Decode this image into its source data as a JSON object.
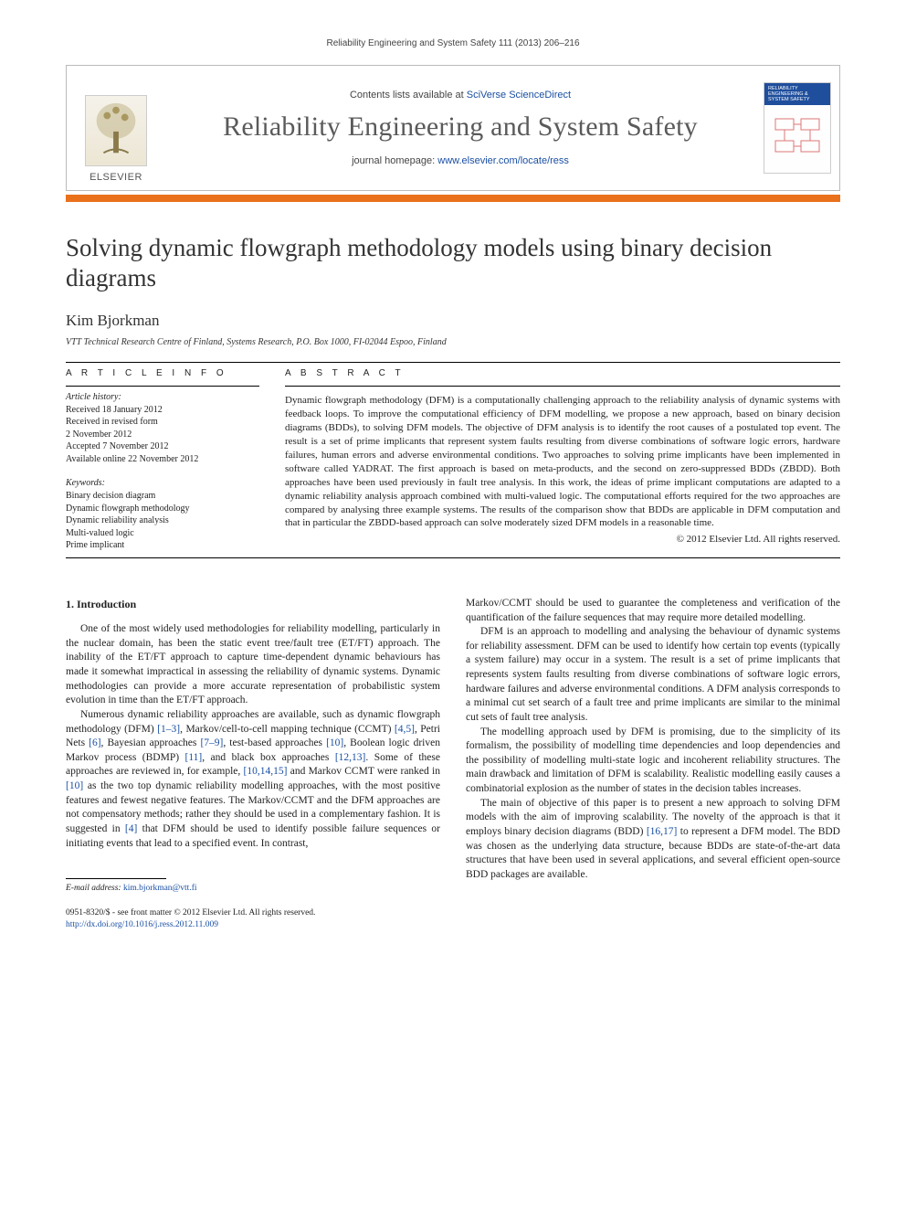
{
  "running_head": "Reliability Engineering and System Safety 111 (2013) 206–216",
  "header": {
    "contents_prefix": "Contents lists available at ",
    "contents_link": "SciVerse ScienceDirect",
    "journal_name": "Reliability Engineering and System Safety",
    "homepage_prefix": "journal homepage: ",
    "homepage_link": "www.elsevier.com/locate/ress",
    "publisher": "ELSEVIER",
    "cover_label": "RELIABILITY ENGINEERING & SYSTEM SAFETY"
  },
  "article": {
    "title": "Solving dynamic flowgraph methodology models using binary decision diagrams",
    "author": "Kim Bjorkman",
    "affiliation": "VTT Technical Research Centre of Finland, Systems Research, P.O. Box 1000, FI-02044 Espoo, Finland"
  },
  "info": {
    "heading": "A R T I C L E   I N F O",
    "history_label": "Article history:",
    "history": [
      "Received 18 January 2012",
      "Received in revised form",
      "2 November 2012",
      "Accepted 7 November 2012",
      "Available online 22 November 2012"
    ],
    "keywords_label": "Keywords:",
    "keywords": [
      "Binary decision diagram",
      "Dynamic flowgraph methodology",
      "Dynamic reliability analysis",
      "Multi-valued logic",
      "Prime implicant"
    ]
  },
  "abstract": {
    "heading": "A B S T R A C T",
    "text": "Dynamic flowgraph methodology (DFM) is a computationally challenging approach to the reliability analysis of dynamic systems with feedback loops. To improve the computational efficiency of DFM modelling, we propose a new approach, based on binary decision diagrams (BDDs), to solving DFM models. The objective of DFM analysis is to identify the root causes of a postulated top event. The result is a set of prime implicants that represent system faults resulting from diverse combinations of software logic errors, hardware failures, human errors and adverse environmental conditions. Two approaches to solving prime implicants have been implemented in software called YADRAT. The first approach is based on meta-products, and the second on zero-suppressed BDDs (ZBDD). Both approaches have been used previously in fault tree analysis. In this work, the ideas of prime implicant computations are adapted to a dynamic reliability analysis approach combined with multi-valued logic. The computational efforts required for the two approaches are compared by analysing three example systems. The results of the comparison show that BDDs are applicable in DFM computation and that in particular the ZBDD-based approach can solve moderately sized DFM models in a reasonable time.",
    "copyright": "© 2012 Elsevier Ltd. All rights reserved."
  },
  "body": {
    "section_heading": "1. Introduction",
    "left_paragraphs": [
      "One of the most widely used methodologies for reliability modelling, particularly in the nuclear domain, has been the static event tree/fault tree (ET/FT) approach. The inability of the ET/FT approach to capture time-dependent dynamic behaviours has made it somewhat impractical in assessing the reliability of dynamic systems. Dynamic methodologies can provide a more accurate representation of probabilistic system evolution in time than the ET/FT approach.",
      "Numerous dynamic reliability approaches are available, such as dynamic flowgraph methodology (DFM) [1–3], Markov/cell-to-cell mapping technique (CCMT) [4,5], Petri Nets [6], Bayesian approaches [7–9], test-based approaches [10], Boolean logic driven Markov process (BDMP) [11], and black box approaches [12,13]. Some of these approaches are reviewed in, for example, [10,14,15] and Markov CCMT were ranked in [10] as the two top dynamic reliability modelling approaches, with the most positive features and fewest negative features. The Markov/CCMT and the DFM approaches are not compensatory methods; rather they should be used in a complementary fashion. It is suggested in [4] that DFM should be used to identify possible failure sequences or initiating events that lead to a specified event. In contrast,"
    ],
    "right_paragraphs": [
      "Markov/CCMT should be used to guarantee the completeness and verification of the quantification of the failure sequences that may require more detailed modelling.",
      "DFM is an approach to modelling and analysing the behaviour of dynamic systems for reliability assessment. DFM can be used to identify how certain top events (typically a system failure) may occur in a system. The result is a set of prime implicants that represents system faults resulting from diverse combinations of software logic errors, hardware failures and adverse environmental conditions. A DFM analysis corresponds to a minimal cut set search of a fault tree and prime implicants are similar to the minimal cut sets of fault tree analysis.",
      "The modelling approach used by DFM is promising, due to the simplicity of its formalism, the possibility of modelling time dependencies and loop dependencies and the possibility of modelling multi-state logic and incoherent reliability structures. The main drawback and limitation of DFM is scalability. Realistic modelling easily causes a combinatorial explosion as the number of states in the decision tables increases.",
      "The main of objective of this paper is to present a new approach to solving DFM models with the aim of improving scalability. The novelty of the approach is that it employs binary decision diagrams (BDD) [16,17] to represent a DFM model. The BDD was chosen as the underlying data structure, because BDDs are state-of-the-art data structures that have been used in several applications, and several efficient open-source BDD packages are available."
    ]
  },
  "footer": {
    "email_label": "E-mail address:",
    "email": "kim.bjorkman@vtt.fi",
    "issn_line": "0951-8320/$ - see front matter © 2012 Elsevier Ltd. All rights reserved.",
    "doi_link": "http://dx.doi.org/10.1016/j.ress.2012.11.009"
  },
  "colors": {
    "orange": "#e9711c",
    "link": "#1a4fa3",
    "header_blue": "#1f4e9c"
  }
}
